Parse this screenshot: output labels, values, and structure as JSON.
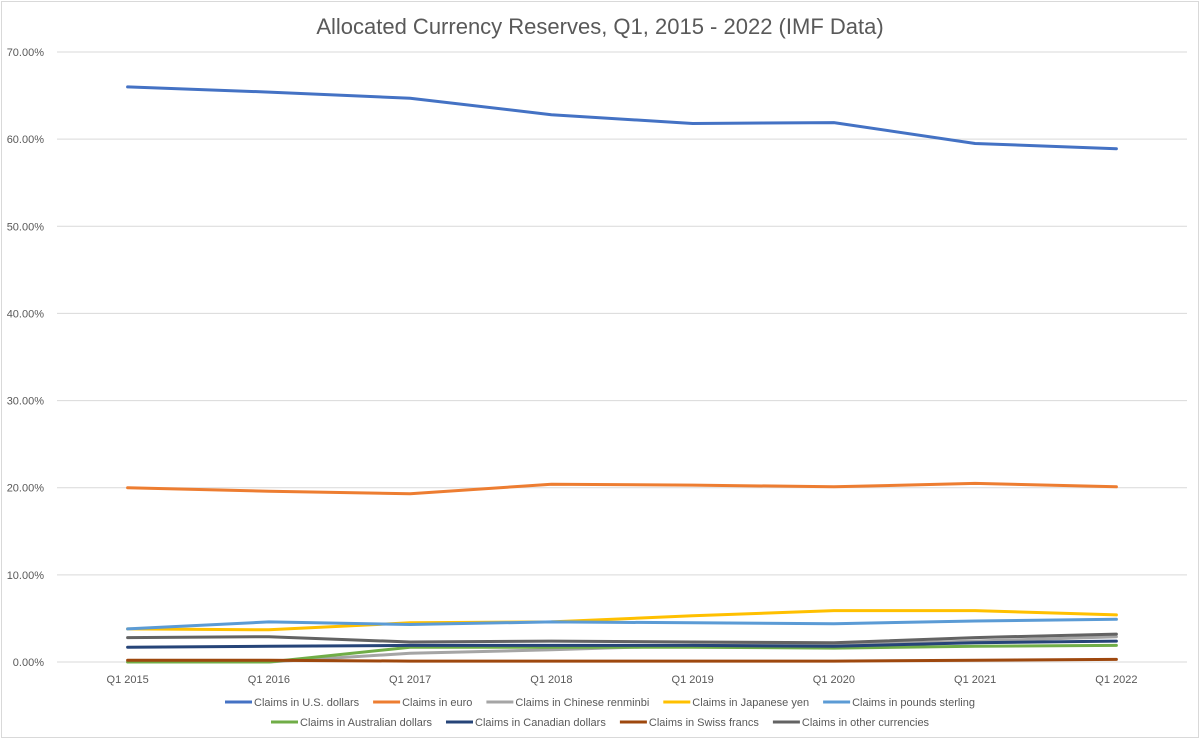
{
  "chart_data": {
    "type": "line",
    "title": "Allocated Currency Reserves, Q1, 2015 - 2022 (IMF Data)",
    "xlabel": "",
    "ylabel": "",
    "ylim": [
      0,
      70
    ],
    "y_ticks": [
      "0.00%",
      "10.00%",
      "20.00%",
      "30.00%",
      "40.00%",
      "50.00%",
      "60.00%",
      "70.00%"
    ],
    "grid": true,
    "legend_position": "bottom",
    "categories": [
      "Q1 2015",
      "Q1 2016",
      "Q1 2017",
      "Q1 2018",
      "Q1 2019",
      "Q1 2020",
      "Q1 2021",
      "Q1 2022"
    ],
    "series": [
      {
        "name": "Claims in U.S. dollars",
        "color": "#4472C4",
        "values": [
          66.0,
          65.4,
          64.7,
          62.8,
          61.8,
          61.9,
          59.5,
          58.9
        ]
      },
      {
        "name": "Claims in euro",
        "color": "#ED7D31",
        "values": [
          20.0,
          19.6,
          19.3,
          20.4,
          20.3,
          20.1,
          20.5,
          20.1
        ]
      },
      {
        "name": "Claims in Chinese renminbi",
        "color": "#A5A5A5",
        "values": [
          0.0,
          0.0,
          1.0,
          1.4,
          1.9,
          2.0,
          2.4,
          2.9
        ]
      },
      {
        "name": "Claims in Japanese yen",
        "color": "#FFC000",
        "values": [
          3.8,
          3.7,
          4.5,
          4.6,
          5.3,
          5.9,
          5.9,
          5.4
        ]
      },
      {
        "name": "Claims in pounds sterling",
        "color": "#5B9BD5",
        "values": [
          3.8,
          4.6,
          4.3,
          4.6,
          4.5,
          4.4,
          4.7,
          4.9
        ]
      },
      {
        "name": "Claims in Australian dollars",
        "color": "#70AD47",
        "values": [
          0.0,
          0.0,
          1.7,
          1.7,
          1.7,
          1.6,
          1.8,
          1.9
        ]
      },
      {
        "name": "Claims in Canadian dollars",
        "color": "#264478",
        "values": [
          1.7,
          1.8,
          1.9,
          1.9,
          1.9,
          1.8,
          2.2,
          2.4
        ]
      },
      {
        "name": "Claims in Swiss francs",
        "color": "#9E480E",
        "values": [
          0.2,
          0.2,
          0.1,
          0.1,
          0.1,
          0.1,
          0.2,
          0.3
        ]
      },
      {
        "name": "Claims in other currencies",
        "color": "#636363",
        "values": [
          2.8,
          2.9,
          2.3,
          2.4,
          2.3,
          2.2,
          2.8,
          3.2
        ]
      }
    ]
  }
}
